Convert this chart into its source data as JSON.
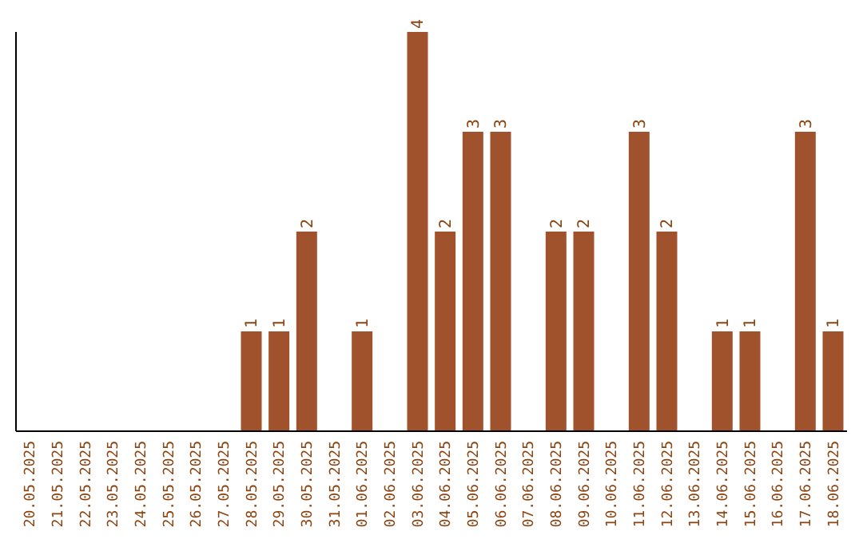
{
  "chart_data": {
    "type": "bar",
    "categories": [
      "20.05.2025",
      "21.05.2025",
      "22.05.2025",
      "23.05.2025",
      "24.05.2025",
      "25.05.2025",
      "26.05.2025",
      "27.05.2025",
      "28.05.2025",
      "29.05.2025",
      "30.05.2025",
      "31.05.2025",
      "01.06.2025",
      "02.06.2025",
      "03.06.2025",
      "04.06.2025",
      "05.06.2025",
      "06.06.2025",
      "07.06.2025",
      "08.06.2025",
      "09.06.2025",
      "10.06.2025",
      "11.06.2025",
      "12.06.2025",
      "13.06.2025",
      "14.06.2025",
      "15.06.2025",
      "16.06.2025",
      "17.06.2025",
      "18.06.2025"
    ],
    "values": [
      null,
      null,
      null,
      null,
      null,
      null,
      null,
      null,
      1,
      1,
      2,
      null,
      1,
      null,
      4,
      2,
      3,
      3,
      null,
      2,
      2,
      null,
      3,
      2,
      null,
      1,
      1,
      null,
      3,
      1
    ],
    "color": "#a0522d",
    "ylim": [
      0,
      4
    ],
    "data_labels": true,
    "tick_labels": "x"
  }
}
